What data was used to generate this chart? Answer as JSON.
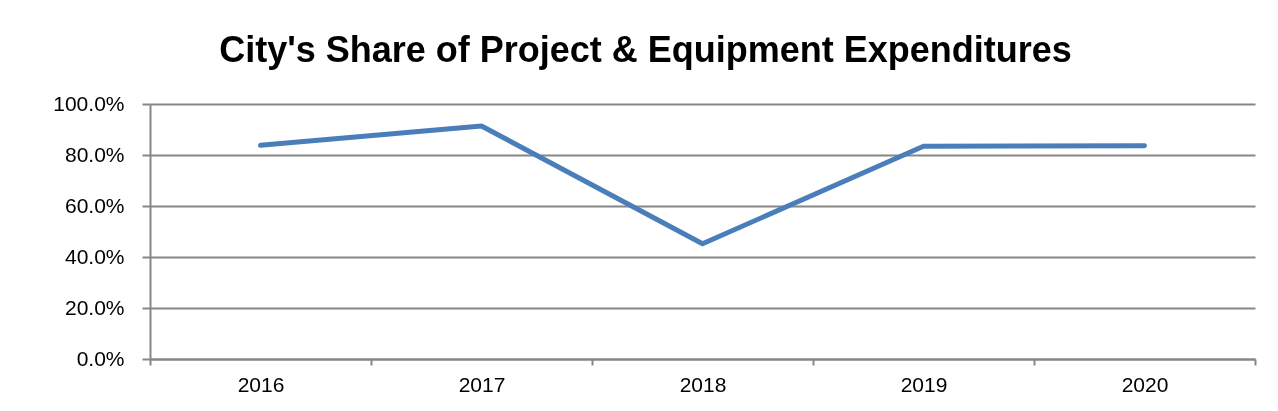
{
  "chart_data": {
    "type": "line",
    "title": "City's Share of Project & Equipment Expenditures",
    "categories": [
      "2016",
      "2017",
      "2018",
      "2019",
      "2020"
    ],
    "values": [
      83.8,
      91.4,
      45.2,
      83.4,
      83.6
    ],
    "color": "#4a7ebb",
    "ylim": [
      0,
      100
    ],
    "yticks": [
      {
        "value": 0,
        "label": "0.0%"
      },
      {
        "value": 20,
        "label": "20.0%"
      },
      {
        "value": 40,
        "label": "40.0%"
      },
      {
        "value": 60,
        "label": "60.0%"
      },
      {
        "value": 80,
        "label": "80.0%"
      },
      {
        "value": 100,
        "label": "100.0%"
      }
    ],
    "grid": "y",
    "line_style": "solid"
  }
}
